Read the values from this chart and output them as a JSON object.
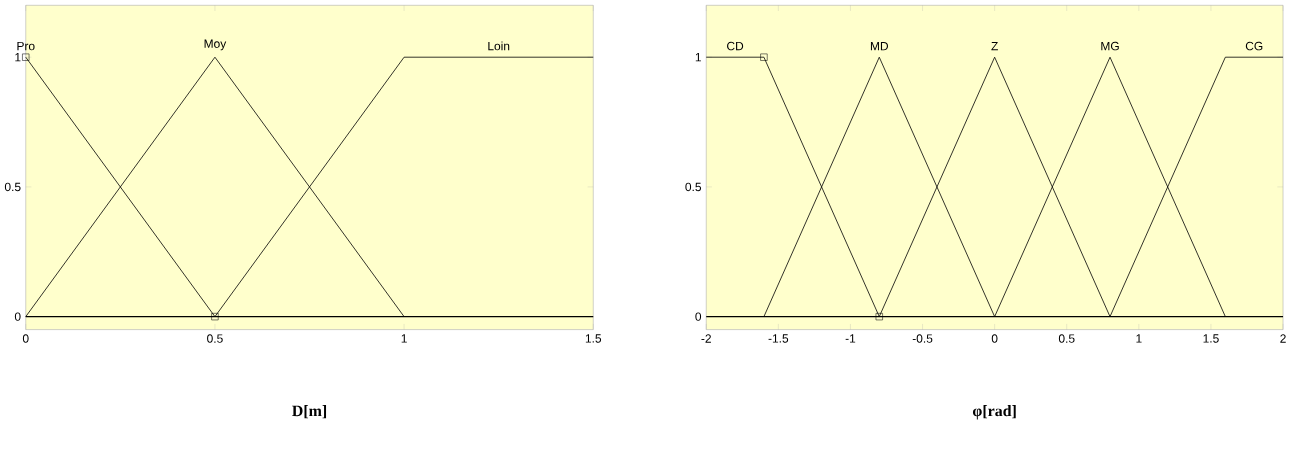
{
  "chart_data": [
    {
      "type": "line",
      "xlabel": "D[m]",
      "xlim": [
        0,
        1.5
      ],
      "ylim": [
        -0.05,
        1.2
      ],
      "xticks": [
        0,
        0.5,
        1,
        1.5
      ],
      "yticks": [
        0,
        0.5,
        1
      ],
      "grid": false,
      "marker": "none",
      "line_style": "solid",
      "series": [
        {
          "name": "Pro",
          "color": "#000000",
          "x": [
            0,
            0.5
          ],
          "values": [
            1,
            0
          ]
        },
        {
          "name": "Moy",
          "color": "#000000",
          "x": [
            0,
            0.5,
            1
          ],
          "values": [
            0,
            1,
            0
          ]
        },
        {
          "name": "Loin",
          "color": "#000000",
          "x": [
            0.5,
            1,
            1.5
          ],
          "values": [
            0,
            1,
            1
          ]
        },
        {
          "type": "scatter",
          "marker": "square",
          "color": "#000000",
          "x": [
            0,
            0.5
          ],
          "values": [
            1,
            0
          ]
        }
      ],
      "ref_lines": [
        {
          "axis": "y",
          "value": 0,
          "color": "#000000"
        }
      ]
    },
    {
      "type": "line",
      "xlabel": "φ[rad]",
      "xlim": [
        -2,
        2
      ],
      "ylim": [
        -0.05,
        1.2
      ],
      "xticks": [
        -2,
        -1.5,
        -1,
        -0.5,
        0,
        0.5,
        1,
        1.5,
        2
      ],
      "yticks": [
        0,
        0.5,
        1
      ],
      "grid": false,
      "marker": "none",
      "line_style": "solid",
      "series": [
        {
          "name": "CD",
          "color": "#000000",
          "x": [
            -2,
            -1.6,
            -0.8
          ],
          "values": [
            1,
            1,
            0
          ]
        },
        {
          "name": "MD",
          "color": "#000000",
          "x": [
            -1.6,
            -0.8,
            0
          ],
          "values": [
            0,
            1,
            0
          ]
        },
        {
          "name": "Z",
          "color": "#000000",
          "x": [
            -0.8,
            0,
            0.8
          ],
          "values": [
            0,
            1,
            0
          ]
        },
        {
          "name": "MG",
          "color": "#000000",
          "x": [
            0,
            0.8,
            1.6
          ],
          "values": [
            0,
            1,
            0
          ]
        },
        {
          "name": "CG",
          "color": "#000000",
          "x": [
            0.8,
            1.6,
            2
          ],
          "values": [
            0,
            1,
            1
          ]
        },
        {
          "type": "scatter",
          "marker": "square",
          "color": "#000000",
          "x": [
            -1.6,
            -0.8
          ],
          "values": [
            1,
            0
          ]
        }
      ],
      "ref_lines": [
        {
          "axis": "y",
          "value": 0,
          "color": "#000000"
        }
      ]
    }
  ]
}
